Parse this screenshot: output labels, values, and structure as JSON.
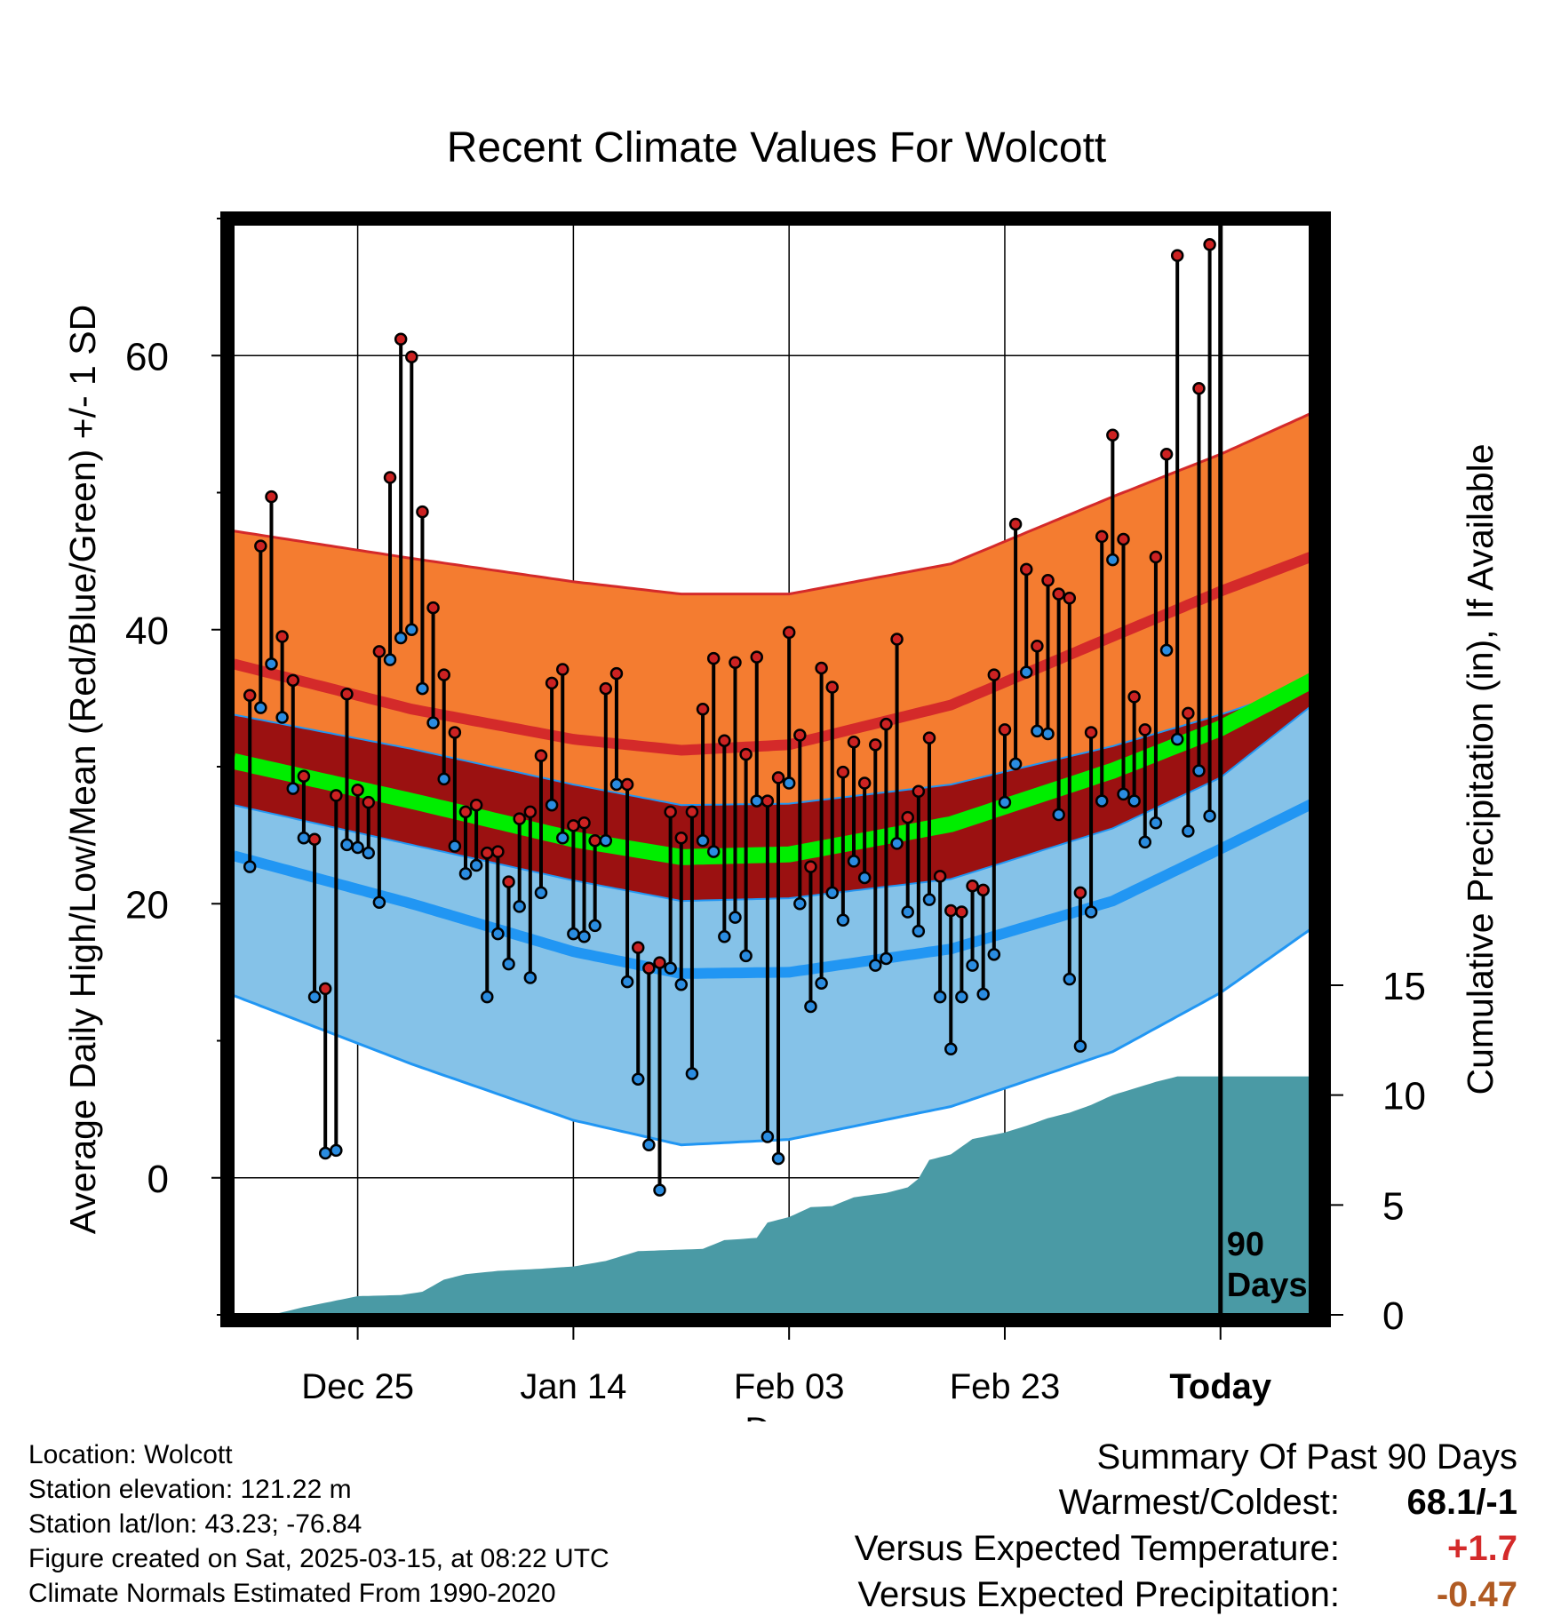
{
  "title": "Recent Climate Values For Wolcott",
  "location_name": "Wolcott",
  "colors": {
    "high_band": "#f47c30",
    "high_edge": "#d42a2a",
    "mid_band": "#9b1111",
    "low_band": "#85c2e8",
    "low_edge": "#2196f3",
    "mean": "#00ee00",
    "precip": "#4a9aa5",
    "high_marker": "#cc2222",
    "low_marker": "#2a8ce0"
  },
  "chart_data": {
    "type": "line",
    "title": "Recent Climate Values For Wolcott",
    "xlabel": "Day",
    "ylabel_left": "Average Daily High/Low/Mean (Red/Blue/Green) +/- 1 SD",
    "ylabel_right": "Cumulative Precipitation (in), If Available",
    "x_tick_labels": [
      "Dec 25",
      "Jan 14",
      "Feb 03",
      "Feb 23",
      "Today"
    ],
    "x_tick_days": [
      -80,
      -60,
      -40,
      -20,
      0
    ],
    "x_range": [
      -91.5,
      9
    ],
    "ylim_left": [
      -10,
      70
    ],
    "yticks_left": [
      0,
      20,
      40,
      60
    ],
    "ylim_right": [
      0,
      15
    ],
    "yticks_right": [
      0,
      5,
      10,
      15
    ],
    "today_marker": "90\nDays",
    "normals": {
      "high_upper": [
        [
          -91.5,
          47.2
        ],
        [
          -75,
          45.2
        ],
        [
          -60,
          43.5
        ],
        [
          -50,
          42.6
        ],
        [
          -40,
          42.6
        ],
        [
          -25,
          44.8
        ],
        [
          -10,
          49.7
        ],
        [
          0,
          52.8
        ],
        [
          9,
          56
        ]
      ],
      "high_mean": [
        [
          -91.5,
          37.5
        ],
        [
          -75,
          34.2
        ],
        [
          -60,
          32.0
        ],
        [
          -50,
          31.2
        ],
        [
          -40,
          31.6
        ],
        [
          -25,
          34.5
        ],
        [
          -10,
          39.5
        ],
        [
          0,
          42.8
        ],
        [
          9,
          45.5
        ]
      ],
      "high_lower": [
        [
          -91.5,
          33.8
        ],
        [
          -75,
          31.3
        ],
        [
          -60,
          28.7
        ],
        [
          -50,
          27.2
        ],
        [
          -40,
          27.3
        ],
        [
          -25,
          28.7
        ],
        [
          -10,
          31.5
        ],
        [
          0,
          33.8
        ],
        [
          9,
          36.2
        ]
      ],
      "mean": [
        [
          -91.5,
          30.4
        ],
        [
          -75,
          27.5
        ],
        [
          -60,
          24.7
        ],
        [
          -50,
          23.4
        ],
        [
          -40,
          23.6
        ],
        [
          -25,
          25.8
        ],
        [
          -10,
          29.7
        ],
        [
          0,
          32.8
        ],
        [
          9,
          36.5
        ]
      ],
      "low_upper": [
        [
          -91.5,
          27.2
        ],
        [
          -75,
          24.3
        ],
        [
          -60,
          21.7
        ],
        [
          -50,
          20.2
        ],
        [
          -40,
          20.4
        ],
        [
          -25,
          21.8
        ],
        [
          -10,
          25.5
        ],
        [
          0,
          29.2
        ],
        [
          9,
          34.8
        ]
      ],
      "low_mean": [
        [
          -91.5,
          23.5
        ],
        [
          -75,
          20.0
        ],
        [
          -60,
          16.5
        ],
        [
          -50,
          14.9
        ],
        [
          -40,
          15.0
        ],
        [
          -25,
          16.7
        ],
        [
          -10,
          20.2
        ],
        [
          0,
          24.0
        ],
        [
          9,
          27.5
        ]
      ],
      "low_lower": [
        [
          -91.5,
          13.3
        ],
        [
          -75,
          8.3
        ],
        [
          -60,
          4.2
        ],
        [
          -50,
          2.4
        ],
        [
          -40,
          2.8
        ],
        [
          -25,
          5.2
        ],
        [
          -10,
          9.2
        ],
        [
          0,
          13.5
        ],
        [
          9,
          18.5
        ]
      ]
    },
    "daily": [
      {
        "day": -90,
        "high": 35.2,
        "low": 22.7
      },
      {
        "day": -89,
        "high": 46.1,
        "low": 34.3
      },
      {
        "day": -88,
        "high": 49.7,
        "low": 37.5
      },
      {
        "day": -87,
        "high": 39.5,
        "low": 33.6
      },
      {
        "day": -86,
        "high": 36.3,
        "low": 28.4
      },
      {
        "day": -85,
        "high": 29.3,
        "low": 24.8
      },
      {
        "day": -84,
        "high": 24.7,
        "low": 13.2
      },
      {
        "day": -83,
        "high": 13.8,
        "low": 1.8
      },
      {
        "day": -82,
        "high": 27.9,
        "low": 2.0
      },
      {
        "day": -81,
        "high": 35.3,
        "low": 24.3
      },
      {
        "day": -80,
        "high": 28.3,
        "low": 24.1
      },
      {
        "day": -79,
        "high": 27.4,
        "low": 23.7
      },
      {
        "day": -78,
        "high": 38.4,
        "low": 20.1
      },
      {
        "day": -77,
        "high": 51.1,
        "low": 37.8
      },
      {
        "day": -76,
        "high": 61.2,
        "low": 39.4
      },
      {
        "day": -75,
        "high": 59.9,
        "low": 40.0
      },
      {
        "day": -74,
        "high": 48.6,
        "low": 35.7
      },
      {
        "day": -73,
        "high": 41.6,
        "low": 33.2
      },
      {
        "day": -72,
        "high": 36.7,
        "low": 29.1
      },
      {
        "day": -71,
        "high": 32.5,
        "low": 24.2
      },
      {
        "day": -70,
        "high": 26.7,
        "low": 22.2
      },
      {
        "day": -69,
        "high": 27.2,
        "low": 22.8
      },
      {
        "day": -68,
        "high": 23.7,
        "low": 13.2
      },
      {
        "day": -67,
        "high": 23.8,
        "low": 17.8
      },
      {
        "day": -66,
        "high": 21.6,
        "low": 15.6
      },
      {
        "day": -65,
        "high": 26.2,
        "low": 19.8
      },
      {
        "day": -64,
        "high": 26.7,
        "low": 14.6
      },
      {
        "day": -63,
        "high": 30.8,
        "low": 20.8
      },
      {
        "day": -62,
        "high": 36.1,
        "low": 27.2
      },
      {
        "day": -61,
        "high": 37.1,
        "low": 24.8
      },
      {
        "day": -60,
        "high": 25.7,
        "low": 17.8
      },
      {
        "day": -59,
        "high": 25.9,
        "low": 17.6
      },
      {
        "day": -58,
        "high": 24.6,
        "low": 18.4
      },
      {
        "day": -57,
        "high": 35.7,
        "low": 24.6
      },
      {
        "day": -56,
        "high": 36.8,
        "low": 28.7
      },
      {
        "day": -55,
        "high": 28.7,
        "low": 14.3
      },
      {
        "day": -54,
        "high": 16.8,
        "low": 7.2
      },
      {
        "day": -53,
        "high": 15.3,
        "low": 2.4
      },
      {
        "day": -52,
        "high": 15.7,
        "low": -0.9
      },
      {
        "day": -51,
        "high": 26.7,
        "low": 15.3
      },
      {
        "day": -50,
        "high": 24.8,
        "low": 14.1
      },
      {
        "day": -49,
        "high": 26.7,
        "low": 7.6
      },
      {
        "day": -48,
        "high": 34.2,
        "low": 24.6
      },
      {
        "day": -47,
        "high": 37.9,
        "low": 23.8
      },
      {
        "day": -46,
        "high": 31.9,
        "low": 17.6
      },
      {
        "day": -45,
        "high": 37.6,
        "low": 19.0
      },
      {
        "day": -44,
        "high": 30.9,
        "low": 16.2
      },
      {
        "day": -43,
        "high": 38.0,
        "low": 27.5
      },
      {
        "day": -42,
        "high": 27.5,
        "low": 3.0
      },
      {
        "day": -41,
        "high": 29.2,
        "low": 1.4
      },
      {
        "day": -40,
        "high": 39.8,
        "low": 28.8
      },
      {
        "day": -39,
        "high": 32.3,
        "low": 20.0
      },
      {
        "day": -38,
        "high": 22.7,
        "low": 12.5
      },
      {
        "day": -37,
        "high": 37.2,
        "low": 14.2
      },
      {
        "day": -36,
        "high": 35.8,
        "low": 20.8
      },
      {
        "day": -35,
        "high": 29.6,
        "low": 18.8
      },
      {
        "day": -34,
        "high": 31.8,
        "low": 23.1
      },
      {
        "day": -33,
        "high": 28.8,
        "low": 21.9
      },
      {
        "day": -32,
        "high": 31.6,
        "low": 15.5
      },
      {
        "day": -31,
        "high": 33.1,
        "low": 16.0
      },
      {
        "day": -30,
        "high": 39.3,
        "low": 24.4
      },
      {
        "day": -29,
        "high": 26.3,
        "low": 19.4
      },
      {
        "day": -28,
        "high": 28.2,
        "low": 18.0
      },
      {
        "day": -27,
        "high": 32.1,
        "low": 20.3
      },
      {
        "day": -26,
        "high": 22.0,
        "low": 13.2
      },
      {
        "day": -25,
        "high": 19.5,
        "low": 9.4
      },
      {
        "day": -24,
        "high": 19.4,
        "low": 13.2
      },
      {
        "day": -23,
        "high": 21.3,
        "low": 15.5
      },
      {
        "day": -22,
        "high": 21.0,
        "low": 13.4
      },
      {
        "day": -21,
        "high": 36.7,
        "low": 16.3
      },
      {
        "day": -20,
        "high": 32.7,
        "low": 27.4
      },
      {
        "day": -19,
        "high": 47.7,
        "low": 30.2
      },
      {
        "day": -18,
        "high": 44.4,
        "low": 36.9
      },
      {
        "day": -17,
        "high": 38.8,
        "low": 32.6
      },
      {
        "day": -16,
        "high": 43.6,
        "low": 32.4
      },
      {
        "day": -15,
        "high": 42.6,
        "low": 26.5
      },
      {
        "day": -14,
        "high": 42.3,
        "low": 14.5
      },
      {
        "day": -13,
        "high": 20.8,
        "low": 9.6
      },
      {
        "day": -12,
        "high": 32.5,
        "low": 19.4
      },
      {
        "day": -11,
        "high": 46.8,
        "low": 27.5
      },
      {
        "day": -10,
        "high": 54.2,
        "low": 45.1
      },
      {
        "day": -9,
        "high": 46.6,
        "low": 28.0
      },
      {
        "day": -8,
        "high": 35.1,
        "low": 27.5
      },
      {
        "day": -7,
        "high": 32.7,
        "low": 24.5
      },
      {
        "day": -6,
        "high": 45.3,
        "low": 25.9
      },
      {
        "day": -5,
        "high": 52.8,
        "low": 38.5
      },
      {
        "day": -4,
        "high": 67.3,
        "low": 32.0
      },
      {
        "day": -3,
        "high": 33.9,
        "low": 25.3
      },
      {
        "day": -2,
        "high": 57.6,
        "low": 29.7
      },
      {
        "day": -1,
        "high": 68.1,
        "low": 26.4
      }
    ],
    "precip_cumulative": [
      [
        -91.5,
        0
      ],
      [
        -88,
        0
      ],
      [
        -85,
        0.35
      ],
      [
        -83,
        0.55
      ],
      [
        -80,
        0.85
      ],
      [
        -76,
        0.9
      ],
      [
        -74,
        1.05
      ],
      [
        -72,
        1.6
      ],
      [
        -70,
        1.85
      ],
      [
        -67,
        2.0
      ],
      [
        -63,
        2.1
      ],
      [
        -60,
        2.2
      ],
      [
        -57,
        2.45
      ],
      [
        -54,
        2.9
      ],
      [
        -48,
        3.0
      ],
      [
        -46,
        3.4
      ],
      [
        -43,
        3.5
      ],
      [
        -42,
        4.2
      ],
      [
        -40,
        4.45
      ],
      [
        -38,
        4.9
      ],
      [
        -36,
        4.95
      ],
      [
        -34,
        5.35
      ],
      [
        -31,
        5.55
      ],
      [
        -29,
        5.8
      ],
      [
        -28,
        6.2
      ],
      [
        -27,
        7.05
      ],
      [
        -25,
        7.3
      ],
      [
        -23,
        8.0
      ],
      [
        -20,
        8.3
      ],
      [
        -18,
        8.6
      ],
      [
        -16,
        8.95
      ],
      [
        -14,
        9.2
      ],
      [
        -12,
        9.55
      ],
      [
        -10,
        10.0
      ],
      [
        -8,
        10.3
      ],
      [
        -6,
        10.6
      ],
      [
        -4,
        10.85
      ],
      [
        9,
        10.85
      ]
    ]
  },
  "location_info": {
    "location": "Location: Wolcott",
    "elevation": "Station elevation: 121.22 m",
    "latlon": "Station lat/lon: 43.23; -76.84",
    "created": "Figure created on Sat, 2025-03-15, at 08:22 UTC",
    "normals": "Climate Normals Estimated From 1990-2020"
  },
  "summary": {
    "title": "Summary Of Past 90 Days",
    "warmest_label": "Warmest/Coldest:",
    "warmest_value": "68.1/-1",
    "temp_label": "Versus Expected Temperature:",
    "temp_value": "+1.7",
    "precip_label": "Versus Expected Precipitation:",
    "precip_value": "-0.47"
  }
}
